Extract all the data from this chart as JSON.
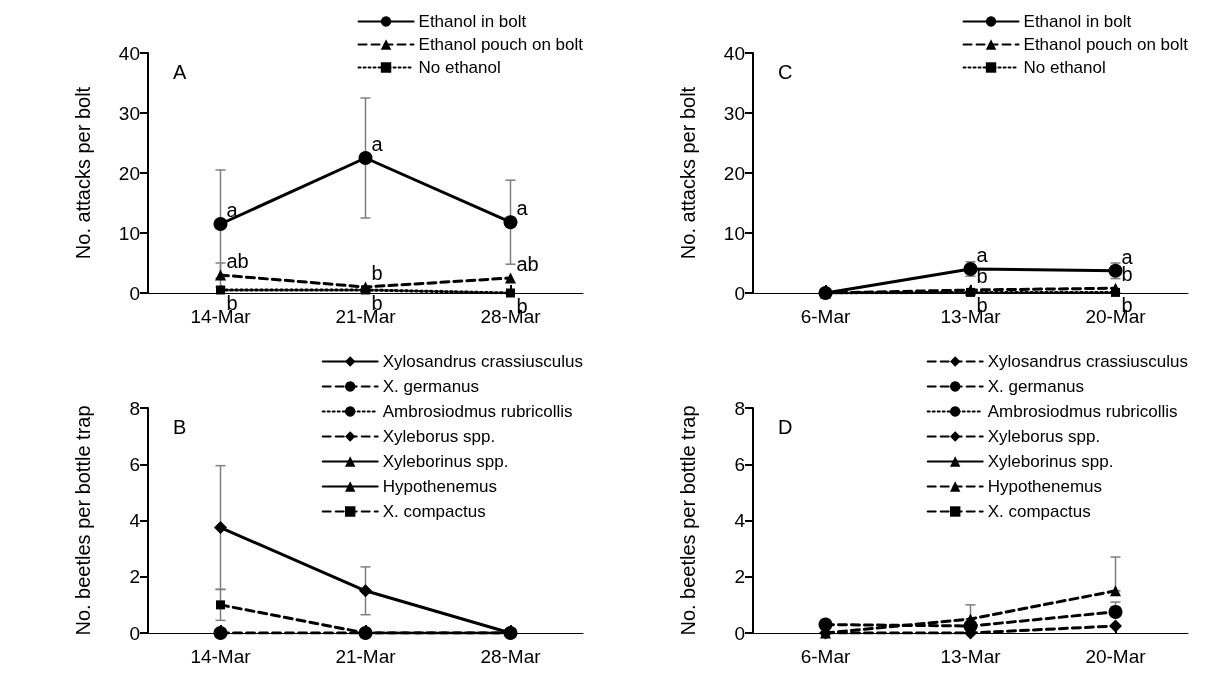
{
  "chart_data": [
    {
      "type": "line",
      "title": "A",
      "ylabel": "No. attacks per bolt",
      "categories": [
        "14-Mar",
        "21-Mar",
        "28-Mar"
      ],
      "ylim": [
        0,
        40
      ],
      "yticks": [
        0,
        10,
        20,
        30,
        40
      ],
      "grid": false,
      "legend": "top right",
      "series": [
        {
          "name": "Ethanol in bolt",
          "color": "#000000",
          "marker": "circle",
          "line_style": "solid",
          "values": [
            11.5,
            22.5,
            11.8
          ],
          "errors": [
            9,
            10,
            7
          ]
        },
        {
          "name": "Ethanol pouch on bolt",
          "color": "#000000",
          "marker": "triangle",
          "line_style": "dashed",
          "values": [
            3,
            1,
            2.5
          ],
          "errors": [
            2,
            null,
            null
          ]
        },
        {
          "name": "No ethanol",
          "color": "#000000",
          "marker": "square",
          "line_style": "dotted",
          "values": [
            0.5,
            0.5,
            0
          ]
        }
      ],
      "annotations": [
        {
          "text": "a",
          "x": "14-Mar",
          "y": 11.5
        },
        {
          "text": "a",
          "x": "21-Mar",
          "y": 22.5
        },
        {
          "text": "a",
          "x": "28-Mar",
          "y": 11.8
        },
        {
          "text": "ab",
          "x": "14-Mar",
          "y": 3
        },
        {
          "text": "b",
          "x": "21-Mar",
          "y": 1
        },
        {
          "text": "ab",
          "x": "28-Mar",
          "y": 2.5
        },
        {
          "text": "b",
          "x": "14-Mar",
          "y": 0.5
        },
        {
          "text": "b",
          "x": "21-Mar",
          "y": 0.5
        },
        {
          "text": "b",
          "x": "28-Mar",
          "y": 0
        }
      ]
    },
    {
      "type": "line",
      "title": "C",
      "ylabel": "No. attacks per bolt",
      "categories": [
        "6-Mar",
        "13-Mar",
        "20-Mar"
      ],
      "ylim": [
        0,
        40
      ],
      "yticks": [
        0,
        10,
        20,
        30,
        40
      ],
      "grid": false,
      "legend": "top right",
      "series": [
        {
          "name": "Ethanol in bolt",
          "color": "#000000",
          "marker": "circle",
          "line_style": "solid",
          "values": [
            0,
            4,
            3.7
          ],
          "errors": [
            null,
            1.2,
            1.3
          ]
        },
        {
          "name": "Ethanol pouch on bolt",
          "color": "#000000",
          "marker": "triangle",
          "line_style": "dashed",
          "values": [
            0,
            0.5,
            0.8
          ]
        },
        {
          "name": "No ethanol",
          "color": "#000000",
          "marker": "square",
          "line_style": "dotted",
          "values": [
            0,
            0.1,
            0.1
          ]
        }
      ],
      "annotations": [
        {
          "text": "a",
          "x": "13-Mar",
          "y": 4
        },
        {
          "text": "a",
          "x": "20-Mar",
          "y": 3.7
        },
        {
          "text": "b",
          "x": "13-Mar",
          "y": 0.5
        },
        {
          "text": "b",
          "x": "20-Mar",
          "y": 0.8
        },
        {
          "text": "b",
          "x": "13-Mar",
          "y": 0.1
        },
        {
          "text": "b",
          "x": "20-Mar",
          "y": 0.1
        }
      ]
    },
    {
      "type": "line",
      "title": "B",
      "ylabel": "No. beetles per bottle trap",
      "categories": [
        "14-Mar",
        "21-Mar",
        "28-Mar"
      ],
      "ylim": [
        0,
        8
      ],
      "yticks": [
        0,
        2,
        4,
        6,
        8
      ],
      "grid": false,
      "legend": "top right",
      "series": [
        {
          "name": "Xylosandrus crassiusculus",
          "color": "#000000",
          "marker": "diamond",
          "line_style": "solid",
          "values": [
            3.75,
            1.5,
            0
          ],
          "errors": [
            2.2,
            0.85,
            null
          ]
        },
        {
          "name": "X. germanus",
          "color": "#000000",
          "marker": "circle",
          "line_style": "dashed",
          "values": [
            0,
            0,
            0
          ]
        },
        {
          "name": "Ambrosiodmus rubricollis",
          "color": "#000000",
          "marker": "circle",
          "line_style": "dotted",
          "values": [
            null,
            null,
            null
          ]
        },
        {
          "name": "Xyleborus spp.",
          "color": "#000000",
          "marker": "diamond",
          "line_style": "dashed",
          "values": [
            null,
            null,
            null
          ]
        },
        {
          "name": "Xyleborinus spp.",
          "color": "#000000",
          "marker": "triangle",
          "line_style": "solid",
          "values": [
            null,
            null,
            null
          ]
        },
        {
          "name": "Hypothenemus",
          "color": "#000000",
          "marker": "triangle",
          "line_style": "solid",
          "values": [
            null,
            null,
            null
          ]
        },
        {
          "name": "X. compactus",
          "color": "#000000",
          "marker": "square",
          "line_style": "dashed",
          "values": [
            1,
            0,
            0
          ],
          "errors": [
            0.55,
            null,
            null
          ]
        }
      ]
    },
    {
      "type": "line",
      "title": "D",
      "ylabel": "No. beetles per bottle trap",
      "categories": [
        "6-Mar",
        "13-Mar",
        "20-Mar"
      ],
      "ylim": [
        0,
        8
      ],
      "yticks": [
        0,
        2,
        4,
        6,
        8
      ],
      "grid": false,
      "legend": "top right",
      "series": [
        {
          "name": "Xylosandrus crassiusculus",
          "color": "#000000",
          "marker": "diamond",
          "line_style": "dashed",
          "values": [
            null,
            null,
            null
          ]
        },
        {
          "name": "X. germanus",
          "color": "#000000",
          "marker": "circle",
          "line_style": "dashed",
          "values": [
            0.3,
            0.25,
            0.75
          ],
          "errors": [
            null,
            null,
            [
              0.75,
              1.1
            ]
          ]
        },
        {
          "name": "Ambrosiodmus rubricollis",
          "color": "#000000",
          "marker": "circle",
          "line_style": "dotted",
          "values": [
            null,
            null,
            null
          ]
        },
        {
          "name": "Xyleborus spp.",
          "color": "#000000",
          "marker": "diamond",
          "line_style": "dashed",
          "values": [
            0,
            0,
            0.25
          ]
        },
        {
          "name": "Xyleborinus spp.",
          "color": "#000000",
          "marker": "triangle",
          "line_style": "solid",
          "values": [
            null,
            null,
            null
          ]
        },
        {
          "name": "Hypothenemus",
          "color": "#000000",
          "marker": "triangle",
          "line_style": "dashed",
          "values": [
            0,
            0.5,
            1.5
          ],
          "errors": [
            null,
            [
              0.5,
              1
            ],
            [
              1.5,
              2.7
            ]
          ]
        },
        {
          "name": "X. compactus",
          "color": "#000000",
          "marker": "square",
          "line_style": "dashed",
          "values": [
            null,
            null,
            null
          ]
        }
      ]
    }
  ]
}
